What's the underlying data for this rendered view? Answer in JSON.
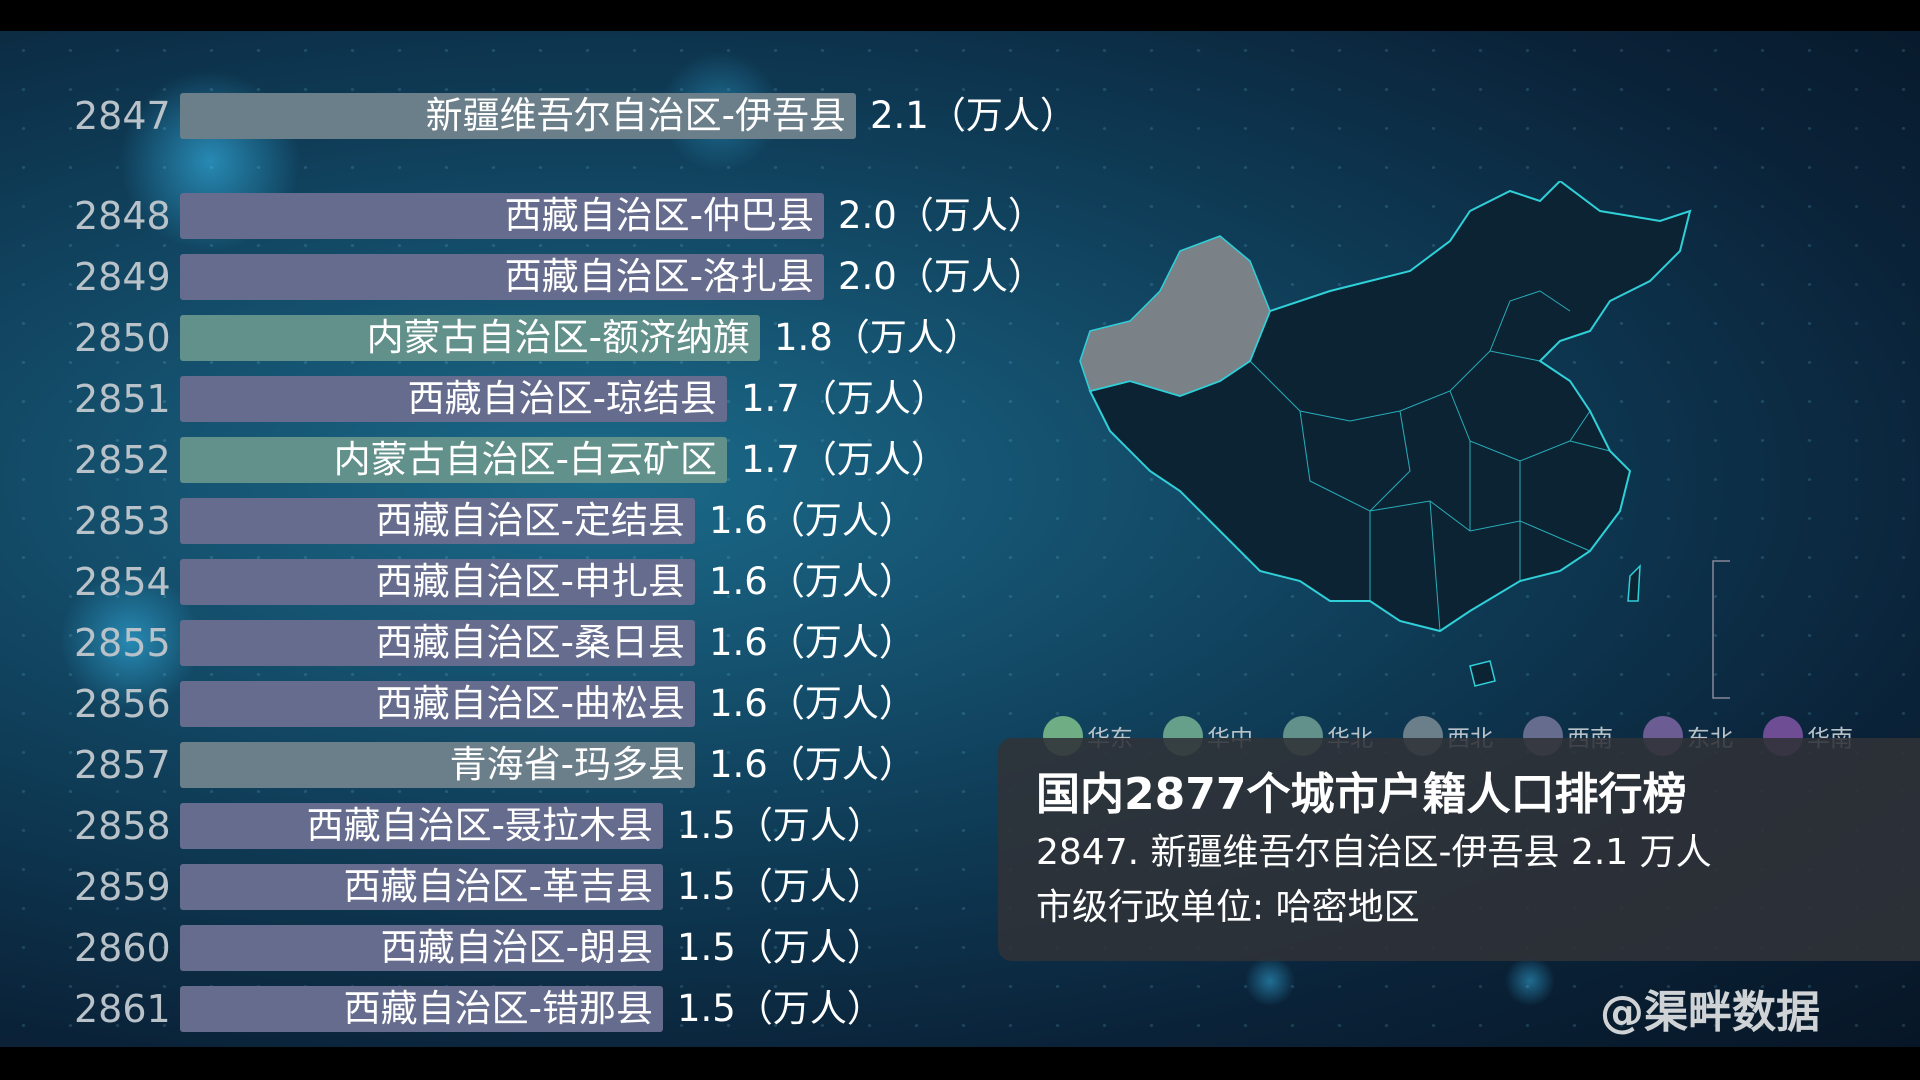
{
  "rows": [
    {
      "rank": "2847",
      "name": "新疆维吾尔自治区-伊吾县",
      "value": 2.1,
      "value_label": "2.1（万人）",
      "region": "西北"
    },
    {
      "rank": "2848",
      "name": "西藏自治区-仲巴县",
      "value": 2.0,
      "value_label": "2.0（万人）",
      "region": "西南"
    },
    {
      "rank": "2849",
      "name": "西藏自治区-洛扎县",
      "value": 2.0,
      "value_label": "2.0（万人）",
      "region": "西南"
    },
    {
      "rank": "2850",
      "name": "内蒙古自治区-额济纳旗",
      "value": 1.8,
      "value_label": "1.8（万人）",
      "region": "华北"
    },
    {
      "rank": "2851",
      "name": "西藏自治区-琼结县",
      "value": 1.7,
      "value_label": "1.7（万人）",
      "region": "西南"
    },
    {
      "rank": "2852",
      "name": "内蒙古自治区-白云矿区",
      "value": 1.7,
      "value_label": "1.7（万人）",
      "region": "华北"
    },
    {
      "rank": "2853",
      "name": "西藏自治区-定结县",
      "value": 1.6,
      "value_label": "1.6（万人）",
      "region": "西南"
    },
    {
      "rank": "2854",
      "name": "西藏自治区-申扎县",
      "value": 1.6,
      "value_label": "1.6（万人）",
      "region": "西南"
    },
    {
      "rank": "2855",
      "name": "西藏自治区-桑日县",
      "value": 1.6,
      "value_label": "1.6（万人）",
      "region": "西南"
    },
    {
      "rank": "2856",
      "name": "西藏自治区-曲松县",
      "value": 1.6,
      "value_label": "1.6（万人）",
      "region": "西南"
    },
    {
      "rank": "2857",
      "name": "青海省-玛多县",
      "value": 1.6,
      "value_label": "1.6（万人）",
      "region": "西北"
    },
    {
      "rank": "2858",
      "name": "西藏自治区-聂拉木县",
      "value": 1.5,
      "value_label": "1.5（万人）",
      "region": "西南"
    },
    {
      "rank": "2859",
      "name": "西藏自治区-革吉县",
      "value": 1.5,
      "value_label": "1.5（万人）",
      "region": "西南"
    },
    {
      "rank": "2860",
      "name": "西藏自治区-朗县",
      "value": 1.5,
      "value_label": "1.5（万人）",
      "region": "西南"
    },
    {
      "rank": "2861",
      "name": "西藏自治区-错那县",
      "value": 1.5,
      "value_label": "1.5（万人）",
      "region": "西南"
    }
  ],
  "legend": [
    {
      "label": "华东",
      "color": "#6fae85"
    },
    {
      "label": "华中",
      "color": "#67a08a"
    },
    {
      "label": "华北",
      "color": "#62908a"
    },
    {
      "label": "西北",
      "color": "#6b7f8a"
    },
    {
      "label": "西南",
      "color": "#666c8e"
    },
    {
      "label": "东北",
      "color": "#6b5c93"
    },
    {
      "label": "华南",
      "color": "#6f4d95"
    }
  ],
  "info": {
    "title": "国内2877个城市户籍人口排行榜",
    "line1": "2847. 新疆维吾尔自治区-伊吾县 2.1 万人",
    "line2": "市级行政单位:  哈密地区"
  },
  "map": {
    "highlighted_region": "新疆维吾尔自治区",
    "highlight_color": "#7a8288",
    "border_color": "#2fd0d8"
  },
  "watermark": "@渠畔数据"
}
